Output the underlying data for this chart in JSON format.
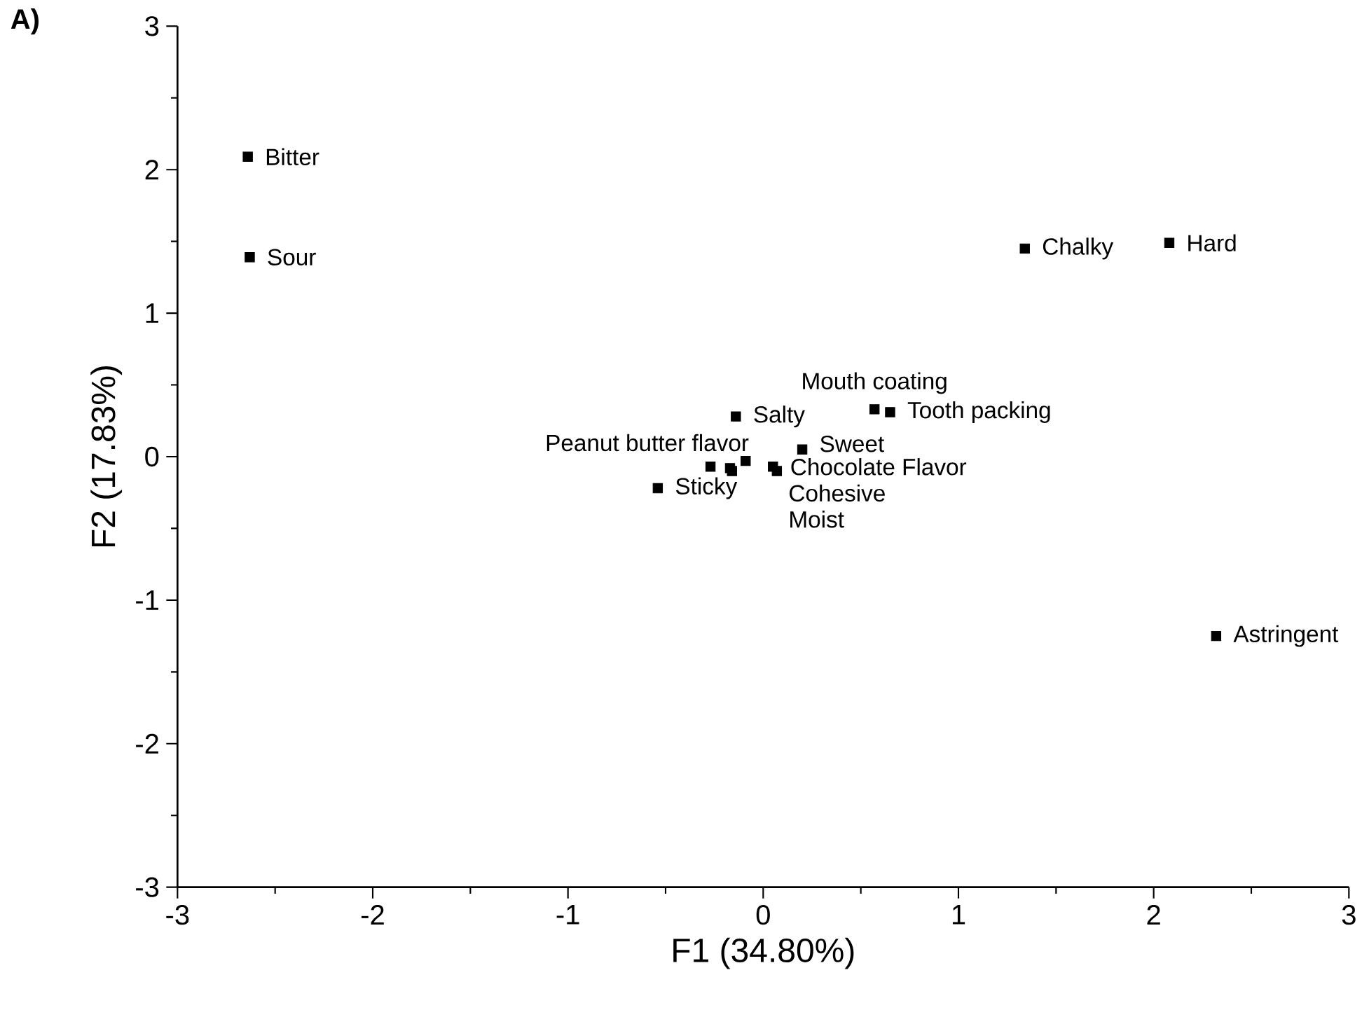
{
  "chart_data": {
    "type": "scatter",
    "xlabel": "F1 (34.80%)",
    "ylabel": "F2 (17.83%)",
    "series": [
      {
        "color": "#000000",
        "x": [
          -2.64,
          -2.63,
          1.34,
          2.08,
          2.32,
          0.57,
          0.65,
          -0.14,
          0.2,
          -0.09,
          -0.27,
          -0.17,
          -0.16,
          0.05,
          0.07,
          -0.54
        ],
        "values": [
          2.09,
          1.39,
          1.45,
          1.49,
          -1.25,
          0.33,
          0.31,
          0.28,
          0.05,
          -0.03,
          -0.07,
          -0.08,
          -0.1,
          -0.07,
          -0.1,
          -0.22
        ]
      }
    ],
    "xlim": [
      -3,
      3
    ],
    "ylim": [
      -3,
      3
    ],
    "xticks": [
      -3,
      -2,
      -1,
      0,
      1,
      2,
      3
    ],
    "yticks": [
      -3,
      -2,
      -1,
      0,
      1,
      2,
      3
    ],
    "marker": "square",
    "annotations": [
      "A)",
      {
        "text": "Bitter",
        "x": -2.64,
        "y": 2.09
      },
      {
        "text": "Sour",
        "x": -2.63,
        "y": 1.39
      },
      {
        "text": "Chalky",
        "x": 1.34,
        "y": 1.45
      },
      {
        "text": "Hard",
        "x": 2.08,
        "y": 1.49
      },
      {
        "text": "Astringent",
        "x": 2.32,
        "y": -1.25
      },
      {
        "text": "Mouth coating",
        "x": 0.57,
        "y": 0.33
      },
      {
        "text": "Tooth packing",
        "x": 0.65,
        "y": 0.31
      },
      {
        "text": "Salty",
        "x": -0.14,
        "y": 0.28
      },
      {
        "text": "Sweet",
        "x": 0.2,
        "y": 0.05
      },
      {
        "text": "Peanut butter flavor",
        "x": -0.09,
        "y": -0.03
      },
      {
        "text": "Chocolate Flavor",
        "x": 0.05,
        "y": -0.07
      },
      {
        "text": "Cohesive",
        "x": 0.07,
        "y": -0.1
      },
      {
        "text": "Moist",
        "x": 0.07,
        "y": -0.1
      },
      {
        "text": "Sticky",
        "x": -0.54,
        "y": -0.22
      }
    ]
  }
}
